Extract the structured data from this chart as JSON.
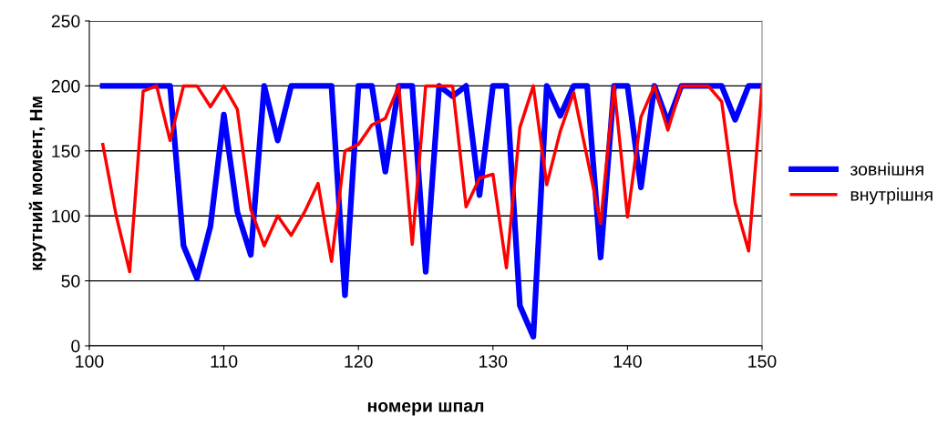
{
  "chart_data": {
    "type": "line",
    "xlabel": "номери шпал",
    "ylabel": "крутний момент, Нм",
    "x": [
      101,
      102,
      103,
      104,
      105,
      106,
      107,
      108,
      109,
      110,
      111,
      112,
      113,
      114,
      115,
      116,
      117,
      118,
      119,
      120,
      121,
      122,
      123,
      124,
      125,
      126,
      127,
      128,
      129,
      130,
      131,
      132,
      133,
      134,
      135,
      136,
      137,
      138,
      139,
      140,
      141,
      142,
      143,
      144,
      145,
      146,
      147,
      148,
      149,
      150
    ],
    "series": [
      {
        "name": "зовнішня",
        "color": "#0000ff",
        "values": [
          200,
          200,
          200,
          200,
          200,
          200,
          77,
          52,
          92,
          178,
          103,
          70,
          200,
          158,
          200,
          200,
          200,
          200,
          39,
          200,
          200,
          134,
          200,
          200,
          57,
          200,
          192,
          200,
          116,
          200,
          200,
          31,
          7,
          200,
          177,
          200,
          200,
          68,
          200,
          200,
          122,
          200,
          172,
          200,
          200,
          200,
          200,
          174,
          200,
          200
        ]
      },
      {
        "name": "внутрішня",
        "color": "#ff0000",
        "values": [
          155,
          100,
          57,
          196,
          200,
          158,
          200,
          200,
          184,
          200,
          182,
          105,
          77,
          100,
          85,
          103,
          125,
          65,
          150,
          155,
          170,
          175,
          200,
          78,
          200,
          200,
          200,
          107,
          129,
          132,
          60,
          168,
          200,
          124,
          165,
          195,
          145,
          94,
          200,
          99,
          176,
          200,
          166,
          200,
          200,
          200,
          188,
          110,
          73,
          200
        ]
      }
    ],
    "xlim": [
      100,
      150
    ],
    "xticks": [
      100,
      110,
      120,
      130,
      140,
      150
    ],
    "ylim": [
      0,
      250
    ],
    "yticks": [
      0,
      50,
      100,
      150,
      200,
      250
    ],
    "grid": "y",
    "legend": "right",
    "marker": "none",
    "line_style": "solid"
  }
}
